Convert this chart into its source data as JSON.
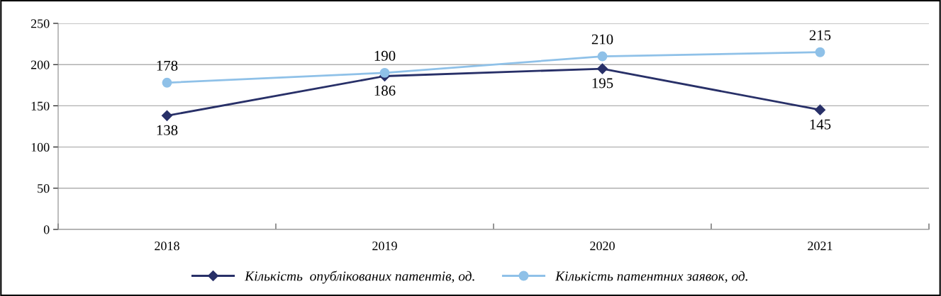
{
  "chart_data": {
    "type": "line",
    "categories": [
      "2018",
      "2019",
      "2020",
      "2021"
    ],
    "series": [
      {
        "name": "Кількість  опублікованих патентів, од.",
        "color": "#283068",
        "values": [
          138,
          186,
          195,
          145
        ],
        "marker": "diamond"
      },
      {
        "name": "Кількість патентних заявок, од.",
        "color": "#8fc1e8",
        "values": [
          178,
          190,
          210,
          215
        ],
        "marker": "circle"
      }
    ],
    "ylim": [
      0,
      250
    ],
    "yticks": [
      0,
      50,
      100,
      150,
      200,
      250
    ],
    "grid": "y",
    "legend": "bottom",
    "data_labels": true,
    "line_style": "solid"
  }
}
